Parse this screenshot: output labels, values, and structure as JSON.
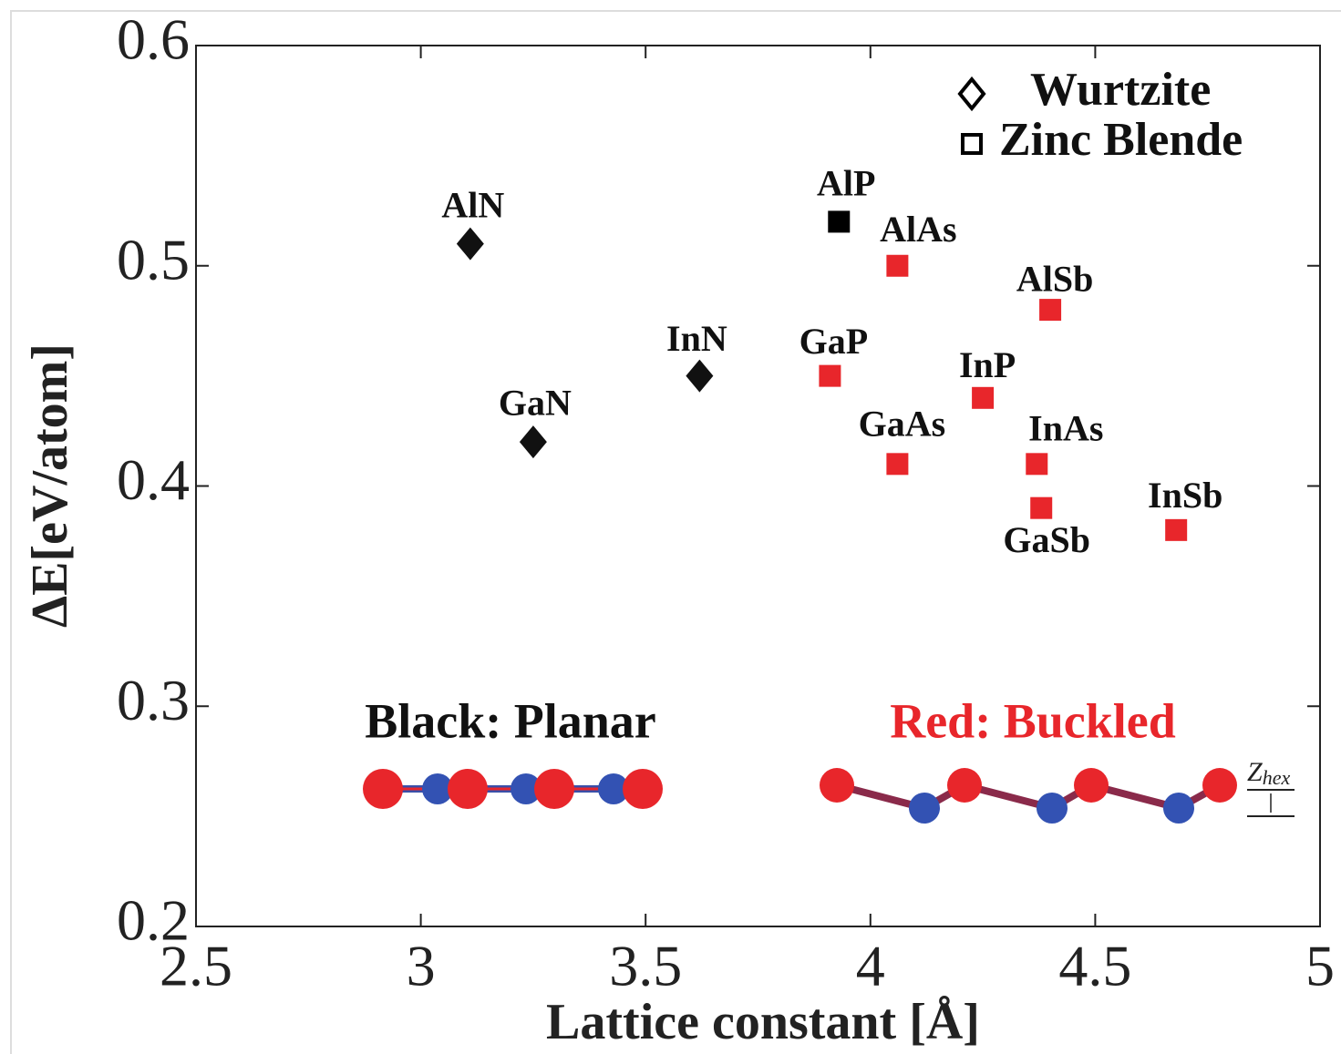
{
  "chart_data": {
    "type": "scatter",
    "x_label": "Lattice constant [Å]",
    "y_label": "ΔE[eV/atom]",
    "xlim": [
      2.5,
      5
    ],
    "xticks": [
      2.5,
      3,
      3.5,
      4,
      4.5,
      5
    ],
    "ylim": [
      0.2,
      0.6
    ],
    "yticks": [
      0.2,
      0.3,
      0.4,
      0.5,
      0.6
    ],
    "legend": "top-right",
    "series": [
      {
        "name": "Wurtzite",
        "marker": "diamond",
        "color": "#000000",
        "labels": [
          "AlN",
          "GaN",
          "InN"
        ],
        "x": [
          3.11,
          3.25,
          3.62
        ],
        "values": [
          0.51,
          0.42,
          0.45
        ],
        "point_colors": [
          "#111111",
          "#111111",
          "#111111"
        ]
      },
      {
        "name": "Zinc Blende",
        "marker": "square",
        "color": "#000000",
        "labels": [
          "AlP",
          "AlAs",
          "AlSb",
          "GaP",
          "InP",
          "GaAs",
          "InAs",
          "GaSb",
          "InSb"
        ],
        "x": [
          3.93,
          4.06,
          4.4,
          3.91,
          4.25,
          4.06,
          4.37,
          4.38,
          4.68
        ],
        "values": [
          0.52,
          0.5,
          0.48,
          0.45,
          0.44,
          0.41,
          0.41,
          0.39,
          0.38
        ],
        "point_colors": [
          "#000000",
          "#e8262b",
          "#e8262b",
          "#e8262b",
          "#e8262b",
          "#e8262b",
          "#e8262b",
          "#e8262b",
          "#e8262b"
        ]
      }
    ],
    "annotations": {
      "planar": "Black: Planar",
      "buckled": "Red: Buckled",
      "z_symbol": "Z",
      "z_subscript": "hex"
    }
  }
}
